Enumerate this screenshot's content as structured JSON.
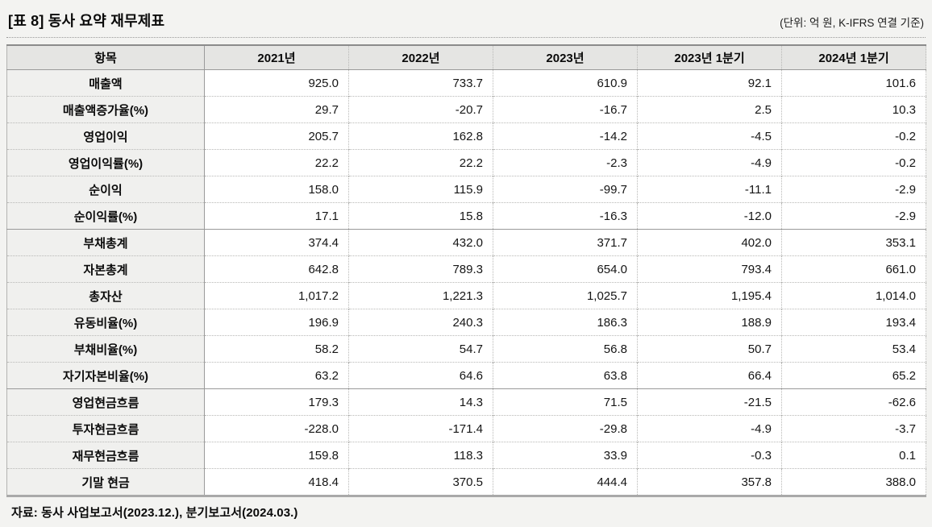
{
  "title": "[표 8] 동사 요약 재무제표",
  "unit_note": "(단위: 억 원, K-IFRS 연결 기준)",
  "source_note": "자료: 동사 사업보고서(2023.12.), 분기보고서(2024.03.)",
  "colors": {
    "page_bg": "#f3f3f1",
    "header_bg": "#e5e5e3",
    "label_bg": "#f0f0ee",
    "cell_bg": "#ffffff",
    "border_strong": "#8b8b8b",
    "border_mid": "#9a9a9a",
    "border_dotted": "#b8b8b6"
  },
  "chart_data": {
    "type": "table",
    "title": "[표 8] 동사 요약 재무제표",
    "columns": [
      "항목",
      "2021년",
      "2022년",
      "2023년",
      "2023년 1분기",
      "2024년 1분기"
    ],
    "rows": [
      {
        "group": "income",
        "label": "매출액",
        "values": [
          "925.0",
          "733.7",
          "610.9",
          "92.1",
          "101.6"
        ]
      },
      {
        "group": "income",
        "label": "매출액증가율(%)",
        "values": [
          "29.7",
          "-20.7",
          "-16.7",
          "2.5",
          "10.3"
        ]
      },
      {
        "group": "income",
        "label": "영업이익",
        "values": [
          "205.7",
          "162.8",
          "-14.2",
          "-4.5",
          "-0.2"
        ]
      },
      {
        "group": "income",
        "label": "영업이익률(%)",
        "values": [
          "22.2",
          "22.2",
          "-2.3",
          "-4.9",
          "-0.2"
        ]
      },
      {
        "group": "income",
        "label": "순이익",
        "values": [
          "158.0",
          "115.9",
          "-99.7",
          "-11.1",
          "-2.9"
        ]
      },
      {
        "group": "income",
        "label": "순이익률(%)",
        "values": [
          "17.1",
          "15.8",
          "-16.3",
          "-12.0",
          "-2.9"
        ]
      },
      {
        "group": "balance",
        "label": "부채총계",
        "values": [
          "374.4",
          "432.0",
          "371.7",
          "402.0",
          "353.1"
        ]
      },
      {
        "group": "balance",
        "label": "자본총계",
        "values": [
          "642.8",
          "789.3",
          "654.0",
          "793.4",
          "661.0"
        ]
      },
      {
        "group": "balance",
        "label": "총자산",
        "values": [
          "1,017.2",
          "1,221.3",
          "1,025.7",
          "1,195.4",
          "1,014.0"
        ]
      },
      {
        "group": "balance",
        "label": "유동비율(%)",
        "values": [
          "196.9",
          "240.3",
          "186.3",
          "188.9",
          "193.4"
        ]
      },
      {
        "group": "balance",
        "label": "부채비율(%)",
        "values": [
          "58.2",
          "54.7",
          "56.8",
          "50.7",
          "53.4"
        ]
      },
      {
        "group": "balance",
        "label": "자기자본비율(%)",
        "values": [
          "63.2",
          "64.6",
          "63.8",
          "66.4",
          "65.2"
        ]
      },
      {
        "group": "cashflow",
        "label": "영업현금흐름",
        "values": [
          "179.3",
          "14.3",
          "71.5",
          "-21.5",
          "-62.6"
        ]
      },
      {
        "group": "cashflow",
        "label": "투자현금흐름",
        "values": [
          "-228.0",
          "-171.4",
          "-29.8",
          "-4.9",
          "-3.7"
        ]
      },
      {
        "group": "cashflow",
        "label": "재무현금흐름",
        "values": [
          "159.8",
          "118.3",
          "33.9",
          "-0.3",
          "0.1"
        ]
      },
      {
        "group": "cashflow",
        "label": "기말 현금",
        "values": [
          "418.4",
          "370.5",
          "444.4",
          "357.8",
          "388.0"
        ]
      }
    ]
  }
}
